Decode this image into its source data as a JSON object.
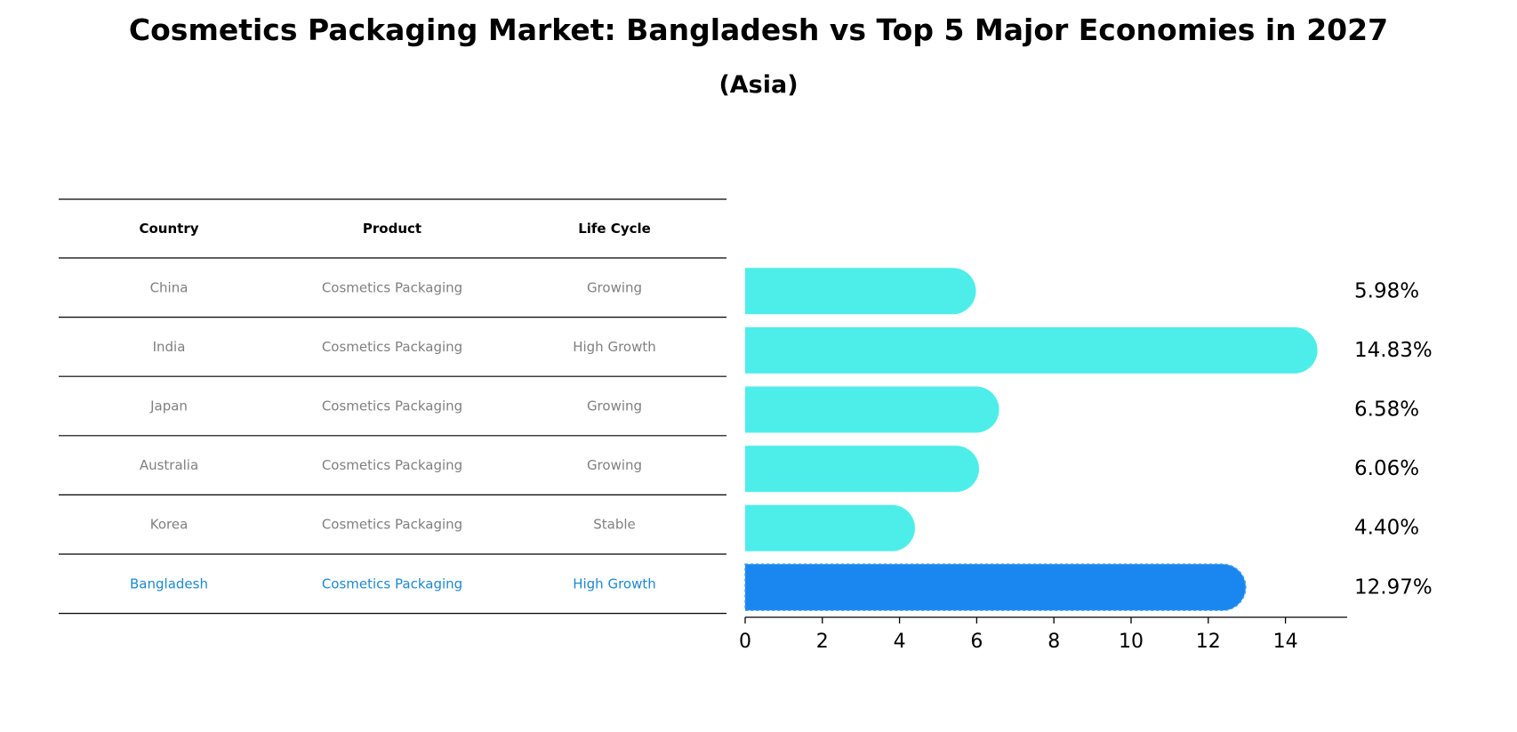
{
  "chart_data": {
    "type": "bar",
    "orientation": "horizontal",
    "title": "Cosmetics Packaging Market: Bangladesh vs Top 5 Major Economies in 2027",
    "subtitle": "(Asia)",
    "xlabel": "",
    "ylabel": "",
    "xlim": [
      0,
      15.6
    ],
    "xticks": [
      0,
      2,
      4,
      6,
      8,
      10,
      12,
      14
    ],
    "categories": [
      "China",
      "India",
      "Japan",
      "Australia",
      "Korea",
      "Bangladesh"
    ],
    "values": [
      5.98,
      14.83,
      6.58,
      6.06,
      4.4,
      12.97
    ],
    "value_labels": [
      "5.98%",
      "14.83%",
      "6.58%",
      "6.06%",
      "4.40%",
      "12.97%"
    ],
    "highlight": "Bangladesh",
    "colors": {
      "bar": "#4DEEEA",
      "highlight_bar": "#1A86F0",
      "highlight_text": "#1E88D0",
      "muted_text": "#808080",
      "rule": "#000000"
    },
    "table": {
      "columns": [
        "Country",
        "Product",
        "Life Cycle"
      ],
      "rows": [
        [
          "China",
          "Cosmetics Packaging",
          "Growing"
        ],
        [
          "India",
          "Cosmetics Packaging",
          "High Growth"
        ],
        [
          "Japan",
          "Cosmetics Packaging",
          "Growing"
        ],
        [
          "Australia",
          "Cosmetics Packaging",
          "Growing"
        ],
        [
          "Korea",
          "Cosmetics Packaging",
          "Stable"
        ],
        [
          "Bangladesh",
          "Cosmetics Packaging",
          "High Growth"
        ]
      ]
    }
  }
}
